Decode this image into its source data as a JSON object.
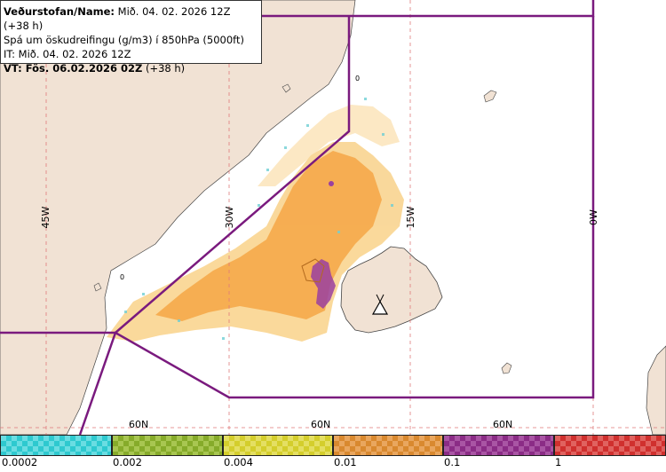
{
  "info": {
    "line1_bold": "Veðurstofan/Name:",
    "line1_rest": " Mið. 04. 02. 2026 12Z (+38 h)",
    "line2": "Spá um öskudreifingu (g/m3) í 850hPa (5000ft)",
    "line3": "IT: Mið. 04. 02. 2026 12Z",
    "line4_bold": "VT: Fös. 06.02.2026 02Z",
    "line4_rest": " (+38 h)"
  },
  "meridian_labels": [
    "45W",
    "30W",
    "15W",
    "0W"
  ],
  "parallel_labels": [
    "60N",
    "60N",
    "60N"
  ],
  "volcano_icon": "volcano-triangle-icon",
  "legend": {
    "labels": [
      "0.0002",
      "0.002",
      "0.004",
      "0.01",
      "0.1",
      "1"
    ],
    "colors": [
      "#2ec9cf",
      "#86ab2a",
      "#d4ce2c",
      "#d9892f",
      "#8b2c86",
      "#d0302e"
    ]
  },
  "colors": {
    "land": "#f1e2d4",
    "sea": "#ffffff",
    "boundary": "#7a1a7e",
    "ash_light": "#f7c56a",
    "ash_mid": "#f5a94a",
    "ash_high": "#9a3fa0"
  }
}
